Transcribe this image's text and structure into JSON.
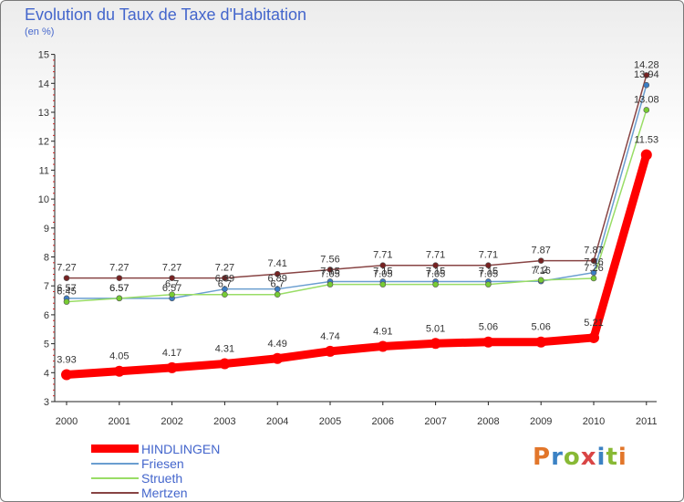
{
  "title": "Evolution du Taux de Taxe d'Habitation",
  "subtitle": "(en %)",
  "logo": {
    "text": "Proxiti",
    "colors": [
      "#e2762a",
      "#3b82c4",
      "#88b935",
      "#d94545",
      "#3b82c4",
      "#88b935",
      "#e2762a"
    ]
  },
  "chart_data": {
    "type": "line",
    "title": "Evolution du Taux de Taxe d'Habitation",
    "ylabel": "(en %)",
    "xlabel": "",
    "x": [
      "2000",
      "2001",
      "2002",
      "2003",
      "2004",
      "2005",
      "2006",
      "2007",
      "2008",
      "2009",
      "2010",
      "2011"
    ],
    "ylim": [
      3,
      15
    ],
    "yticks": [
      3,
      4,
      5,
      6,
      7,
      8,
      9,
      10,
      11,
      12,
      13,
      14,
      15
    ],
    "grid": false,
    "legend": "bottom-left",
    "series": [
      {
        "name": "HINDLINGEN",
        "color": "#ff0000",
        "marker": "#ff0000",
        "values": [
          3.93,
          4.05,
          4.17,
          4.31,
          4.49,
          4.74,
          4.91,
          5.01,
          5.06,
          5.06,
          5.21,
          11.53
        ],
        "labels": [
          "3.93",
          "4.05",
          "4.17",
          "4.31",
          "4.49",
          "4.74",
          "4.91",
          "5.01",
          "5.06",
          "5.06",
          "5.21",
          "11.53"
        ]
      },
      {
        "name": "Friesen",
        "color": "#6a9ed0",
        "marker": "#3b7dc4",
        "values": [
          6.57,
          6.57,
          6.57,
          6.89,
          6.89,
          7.15,
          7.15,
          7.15,
          7.15,
          7.16,
          7.46,
          13.94
        ],
        "labels": [
          "6.57",
          "6.57",
          "6.57",
          "6.89",
          "6.89",
          "7.15",
          "7.15",
          "7.15",
          "7.15",
          "7.16",
          "7.46",
          "13.94"
        ]
      },
      {
        "name": "Strueth",
        "color": "#99dd66",
        "marker": "#77cc33",
        "values": [
          6.45,
          6.57,
          6.7,
          6.7,
          6.7,
          7.05,
          7.05,
          7.05,
          7.05,
          7.2,
          7.26,
          13.08
        ],
        "labels": [
          "6.45",
          "6.57",
          "6.7",
          "6.7",
          "6.7",
          "7.05",
          "7.05",
          "7.05",
          "7.05",
          "7.2",
          "7.26",
          "13.08"
        ]
      },
      {
        "name": "Mertzen",
        "color": "#884444",
        "marker": "#772222",
        "values": [
          7.27,
          7.27,
          7.27,
          7.27,
          7.41,
          7.56,
          7.71,
          7.71,
          7.71,
          7.87,
          7.87,
          14.28
        ],
        "labels": [
          "7.27",
          "7.27",
          "7.27",
          "7.27",
          "7.41",
          "7.56",
          "7.71",
          "7.71",
          "7.71",
          "7.87",
          "7.87",
          "14.28"
        ]
      }
    ]
  }
}
